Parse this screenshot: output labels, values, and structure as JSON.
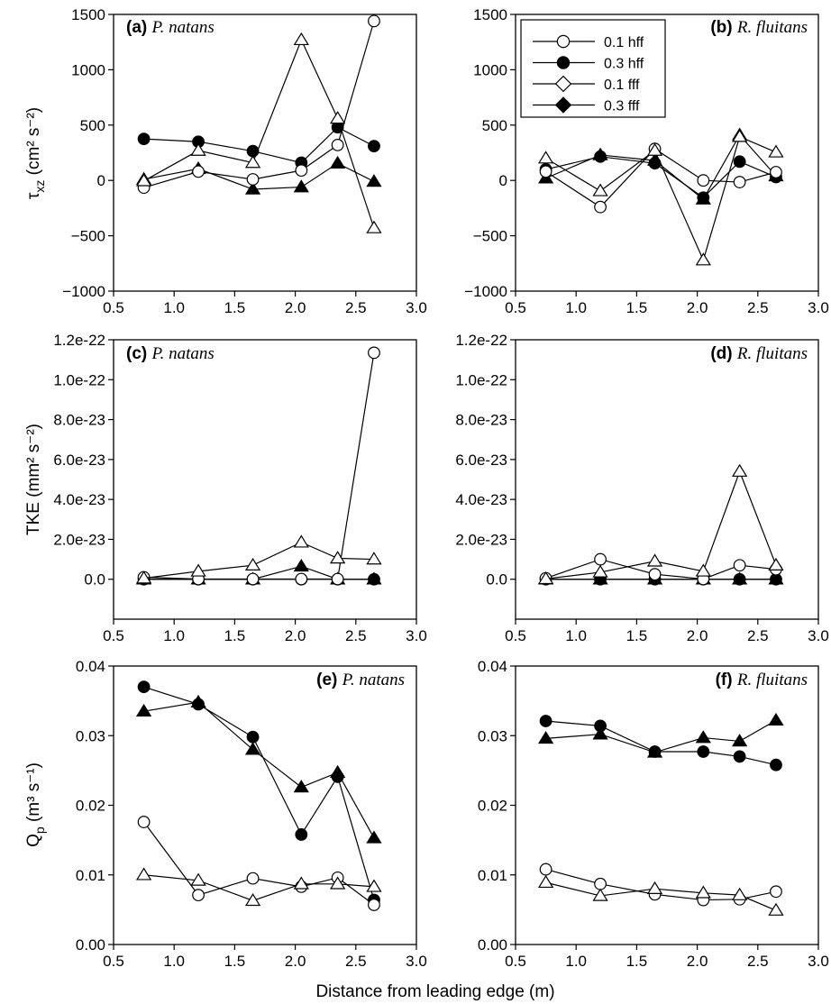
{
  "figure": {
    "xlabel": "Distance from leading edge (m)"
  },
  "legend": {
    "entries": [
      {
        "key": "hff01",
        "label": "0.1 hff"
      },
      {
        "key": "hff03",
        "label": "0.3 hff"
      },
      {
        "key": "fff01",
        "label": "0.1 fff"
      },
      {
        "key": "fff03",
        "label": "0.3 fff"
      }
    ]
  },
  "chart_data": [
    {
      "type": "line",
      "panel": "(a)",
      "species": "P. natans",
      "ylabel_main": "τ",
      "ylabel_sub": "xz",
      "ylabel_unit": "(cm² s⁻²)",
      "xlim": [
        0.5,
        3.0
      ],
      "ylim": [
        -1000,
        1500
      ],
      "xticks": [
        "0.5",
        "1.0",
        "1.5",
        "2.0",
        "2.5",
        "3.0"
      ],
      "yticks": [
        "−1000",
        "−500",
        "0",
        "500",
        "1000",
        "1500"
      ],
      "x": [
        0.75,
        1.2,
        1.65,
        2.05,
        2.35,
        2.65
      ],
      "series": [
        {
          "key": "hff01",
          "values": [
            -65,
            80,
            10,
            90,
            320,
            1440
          ]
        },
        {
          "key": "hff03",
          "values": [
            375,
            350,
            265,
            160,
            480,
            310
          ]
        },
        {
          "key": "fff01",
          "values": [
            -5,
            270,
            160,
            1270,
            560,
            -430
          ]
        },
        {
          "key": "fff03",
          "values": [
            10,
            105,
            -80,
            -60,
            155,
            -10
          ]
        }
      ]
    },
    {
      "type": "line",
      "panel": "(b)",
      "species": "R. fluitans",
      "xlim": [
        0.5,
        3.0
      ],
      "ylim": [
        -1000,
        1500
      ],
      "xticks": [
        "0.5",
        "1.0",
        "1.5",
        "2.0",
        "2.5",
        "3.0"
      ],
      "yticks": [
        "−1000",
        "−500",
        "0",
        "500",
        "1000",
        "1500"
      ],
      "x": [
        0.75,
        1.2,
        1.65,
        2.05,
        2.35,
        2.65
      ],
      "series": [
        {
          "key": "hff01",
          "values": [
            80,
            -240,
            285,
            0,
            -15,
            75
          ]
        },
        {
          "key": "hff03",
          "values": [
            100,
            215,
            155,
            -155,
            170,
            30
          ]
        },
        {
          "key": "fff01",
          "values": [
            200,
            -95,
            270,
            -720,
            395,
            255
          ]
        },
        {
          "key": "fff03",
          "values": [
            20,
            230,
            180,
            -170,
            410,
            40
          ]
        }
      ]
    },
    {
      "type": "line",
      "panel": "(c)",
      "species": "P. natans",
      "ylabel_main": "TKE",
      "ylabel_unit": "(mm² s⁻²)",
      "xlim": [
        0.5,
        3.0
      ],
      "ylim": [
        -2e-23,
        1.2e-22
      ],
      "xticks": [
        "0.5",
        "1.0",
        "1.5",
        "2.0",
        "2.5",
        "3.0"
      ],
      "yticks": [
        "0.0",
        "2.0e-23",
        "4.0e-23",
        "6.0e-23",
        "8.0e-23",
        "1.0e-22",
        "1.2e-22"
      ],
      "x": [
        0.75,
        1.2,
        1.65,
        2.05,
        2.35,
        2.65
      ],
      "series": [
        {
          "key": "hff01",
          "values": [
            1e-24,
            1e-25,
            1e-25,
            1e-25,
            1e-25,
            1.135e-22
          ]
        },
        {
          "key": "hff03",
          "values": [
            0,
            0,
            0,
            0,
            0,
            0
          ]
        },
        {
          "key": "fff01",
          "values": [
            5e-25,
            4e-24,
            7e-24,
            1.85e-23,
            1.05e-23,
            1e-23
          ]
        },
        {
          "key": "fff03",
          "values": [
            0,
            0,
            0,
            6.5e-24,
            0,
            0
          ]
        }
      ]
    },
    {
      "type": "line",
      "panel": "(d)",
      "species": "R. fluitans",
      "xlim": [
        0.5,
        3.0
      ],
      "ylim": [
        -2e-23,
        1.2e-22
      ],
      "xticks": [
        "0.5",
        "1.0",
        "1.5",
        "2.0",
        "2.5",
        "3.0"
      ],
      "yticks": [
        "0.0",
        "2.0e-23",
        "4.0e-23",
        "6.0e-23",
        "8.0e-23",
        "1.0e-22",
        "1.2e-22"
      ],
      "x": [
        0.75,
        1.2,
        1.65,
        2.05,
        2.35,
        2.65
      ],
      "series": [
        {
          "key": "hff01",
          "values": [
            5e-25,
            1e-23,
            2.5e-24,
            1e-25,
            7e-24,
            5e-24
          ]
        },
        {
          "key": "hff03",
          "values": [
            0,
            0,
            0,
            0,
            0,
            0
          ]
        },
        {
          "key": "fff01",
          "values": [
            2e-25,
            3.5e-24,
            9e-24,
            4e-24,
            5.4e-23,
            7e-24
          ]
        },
        {
          "key": "fff03",
          "values": [
            0,
            0,
            0,
            0,
            0,
            0
          ]
        }
      ]
    },
    {
      "type": "line",
      "panel": "(e)",
      "species": "P. natans",
      "ylabel_main": "Q",
      "ylabel_sub": "p",
      "ylabel_unit": "(m³ s⁻¹)",
      "xlim": [
        0.5,
        3.0
      ],
      "ylim": [
        0.0,
        0.04
      ],
      "xticks": [
        "0.5",
        "1.0",
        "1.5",
        "2.0",
        "2.5",
        "3.0"
      ],
      "yticks": [
        "0.00",
        "0.01",
        "0.02",
        "0.03",
        "0.04"
      ],
      "x": [
        0.75,
        1.2,
        1.65,
        2.05,
        2.35,
        2.65
      ],
      "series": [
        {
          "key": "hff01",
          "values": [
            0.0176,
            0.0071,
            0.0095,
            0.0083,
            0.0096,
            0.0057
          ]
        },
        {
          "key": "hff03",
          "values": [
            0.037,
            0.0345,
            0.0298,
            0.0158,
            0.0241,
            0.0064
          ]
        },
        {
          "key": "fff01",
          "values": [
            0.01,
            0.0092,
            0.0063,
            0.0087,
            0.0087,
            0.0083
          ]
        },
        {
          "key": "fff03",
          "values": [
            0.0335,
            0.0348,
            0.028,
            0.0226,
            0.0247,
            0.0153
          ]
        }
      ]
    },
    {
      "type": "line",
      "panel": "(f)",
      "species": "R. fluitans",
      "xlim": [
        0.5,
        3.0
      ],
      "ylim": [
        0.0,
        0.04
      ],
      "xticks": [
        "0.5",
        "1.0",
        "1.5",
        "2.0",
        "2.5",
        "3.0"
      ],
      "yticks": [
        "0.00",
        "0.01",
        "0.02",
        "0.03",
        "0.04"
      ],
      "x": [
        0.75,
        1.2,
        1.65,
        2.05,
        2.35,
        2.65
      ],
      "series": [
        {
          "key": "hff01",
          "values": [
            0.0108,
            0.0087,
            0.0072,
            0.0064,
            0.0065,
            0.0076
          ]
        },
        {
          "key": "hff03",
          "values": [
            0.0321,
            0.0314,
            0.0277,
            0.0277,
            0.027,
            0.0258
          ]
        },
        {
          "key": "fff01",
          "values": [
            0.0089,
            0.007,
            0.008,
            0.0074,
            0.0071,
            0.0049
          ]
        },
        {
          "key": "fff03",
          "values": [
            0.0296,
            0.0302,
            0.0276,
            0.0297,
            0.0292,
            0.0322
          ]
        }
      ]
    }
  ]
}
